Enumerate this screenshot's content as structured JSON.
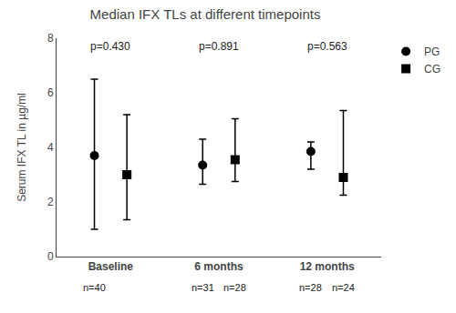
{
  "chart_data": {
    "type": "scatter",
    "title": "Median IFX TLs at different timepoints",
    "ylabel": "Serum IFX TL in µg/ml",
    "categories": [
      "Baseline",
      "6 months",
      "12 months"
    ],
    "series": [
      {
        "name": "PG",
        "color": "#000000",
        "marker": "circle",
        "values": [
          3.7,
          3.35,
          3.85
        ],
        "error_minus": [
          2.7,
          0.7,
          0.65
        ],
        "error_plus": [
          2.8,
          0.95,
          0.35
        ],
        "n_labels": [
          "n=40",
          "n=31",
          "n=28"
        ]
      },
      {
        "name": "CG",
        "color": "#000000",
        "marker": "square",
        "values": [
          3.0,
          3.55,
          2.9
        ],
        "error_minus": [
          1.65,
          0.8,
          0.65
        ],
        "error_plus": [
          2.2,
          1.5,
          2.45
        ],
        "n_labels": [
          null,
          "n=28",
          "n=24"
        ]
      }
    ],
    "annotations": [
      {
        "text": "p=0.430",
        "category": "Baseline"
      },
      {
        "text": "p=0.891",
        "category": "6 months"
      },
      {
        "text": "p=0.563",
        "category": "12 months"
      }
    ],
    "ylim": [
      0,
      8
    ],
    "yticks": [
      0,
      2,
      4,
      6,
      8
    ],
    "grid": false,
    "legend": "right"
  }
}
